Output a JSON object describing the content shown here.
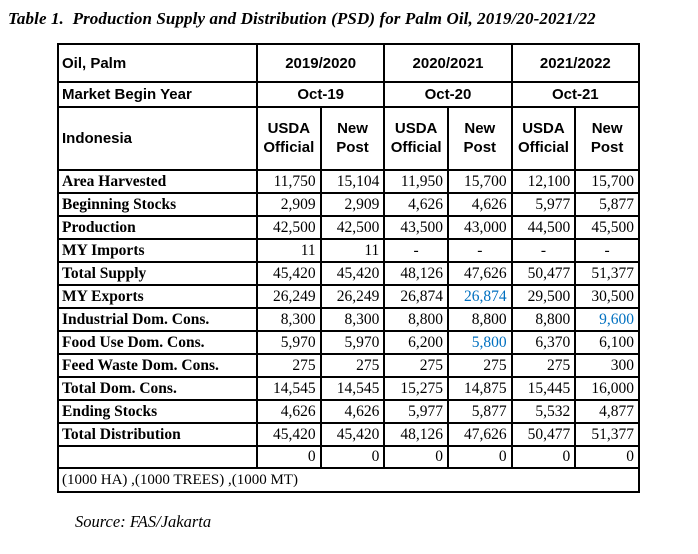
{
  "title": "Table 1.  Production Supply and Distribution (PSD) for Palm Oil, 2019/20-2021/22",
  "source": "Source: FAS/Jakarta",
  "colors": {
    "value_highlight_blue": "#0070C0",
    "border": "#000000",
    "background": "#FFFFFF"
  },
  "table": {
    "corner_label": "Oil, Palm",
    "market_begin_label": "Market Begin Year",
    "country_label": "Indonesia",
    "years": [
      {
        "label": "2019/2020",
        "begin": "Oct-19"
      },
      {
        "label": "2020/2021",
        "begin": "Oct-20"
      },
      {
        "label": "2021/2022",
        "begin": "Oct-21"
      }
    ],
    "column_headers": [
      "USDA Official",
      "New Post",
      "USDA Official",
      "New Post",
      "USDA Official",
      "New Post"
    ],
    "rows": [
      {
        "label": "Area Harvested",
        "values": [
          "11,750",
          "15,104",
          "11,950",
          "15,700",
          "12,100",
          "15,700"
        ],
        "blue": []
      },
      {
        "label": "Beginning Stocks",
        "values": [
          "2,909",
          "2,909",
          "4,626",
          "4,626",
          "5,977",
          "5,877"
        ],
        "blue": []
      },
      {
        "label": "Production",
        "values": [
          "42,500",
          "42,500",
          "43,500",
          "43,000",
          "44,500",
          "45,500"
        ],
        "blue": []
      },
      {
        "label": "MY Imports",
        "values": [
          "11",
          "11",
          "-",
          "-",
          "-",
          "-"
        ],
        "blue": []
      },
      {
        "label": "Total Supply",
        "values": [
          "45,420",
          "45,420",
          "48,126",
          "47,626",
          "50,477",
          "51,377"
        ],
        "blue": []
      },
      {
        "label": "MY Exports",
        "values": [
          "26,249",
          "26,249",
          "26,874",
          "26,874",
          "29,500",
          "30,500"
        ],
        "blue": [
          3
        ]
      },
      {
        "label": "Industrial Dom. Cons.",
        "values": [
          "8,300",
          "8,300",
          "8,800",
          "8,800",
          "8,800",
          "9,600"
        ],
        "blue": [
          5
        ]
      },
      {
        "label": "Food Use Dom. Cons.",
        "values": [
          "5,970",
          "5,970",
          "6,200",
          "5,800",
          "6,370",
          "6,100"
        ],
        "blue": [
          3
        ]
      },
      {
        "label": "Feed Waste Dom. Cons.",
        "values": [
          "275",
          "275",
          "275",
          "275",
          "275",
          "300"
        ],
        "blue": []
      },
      {
        "label": "Total Dom. Cons.",
        "values": [
          "14,545",
          "14,545",
          "15,275",
          "14,875",
          "15,445",
          "16,000"
        ],
        "blue": []
      },
      {
        "label": "Ending Stocks",
        "values": [
          "4,626",
          "4,626",
          "5,977",
          "5,877",
          "5,532",
          "4,877"
        ],
        "blue": []
      },
      {
        "label": "Total Distribution",
        "values": [
          "45,420",
          "45,420",
          "48,126",
          "47,626",
          "50,477",
          "51,377"
        ],
        "blue": []
      }
    ],
    "zero_row": {
      "label": "",
      "values": [
        "0",
        "0",
        "0",
        "0",
        "0",
        "0"
      ]
    },
    "units_row": "(1000 HA) ,(1000 TREES) ,(1000 MT)"
  }
}
